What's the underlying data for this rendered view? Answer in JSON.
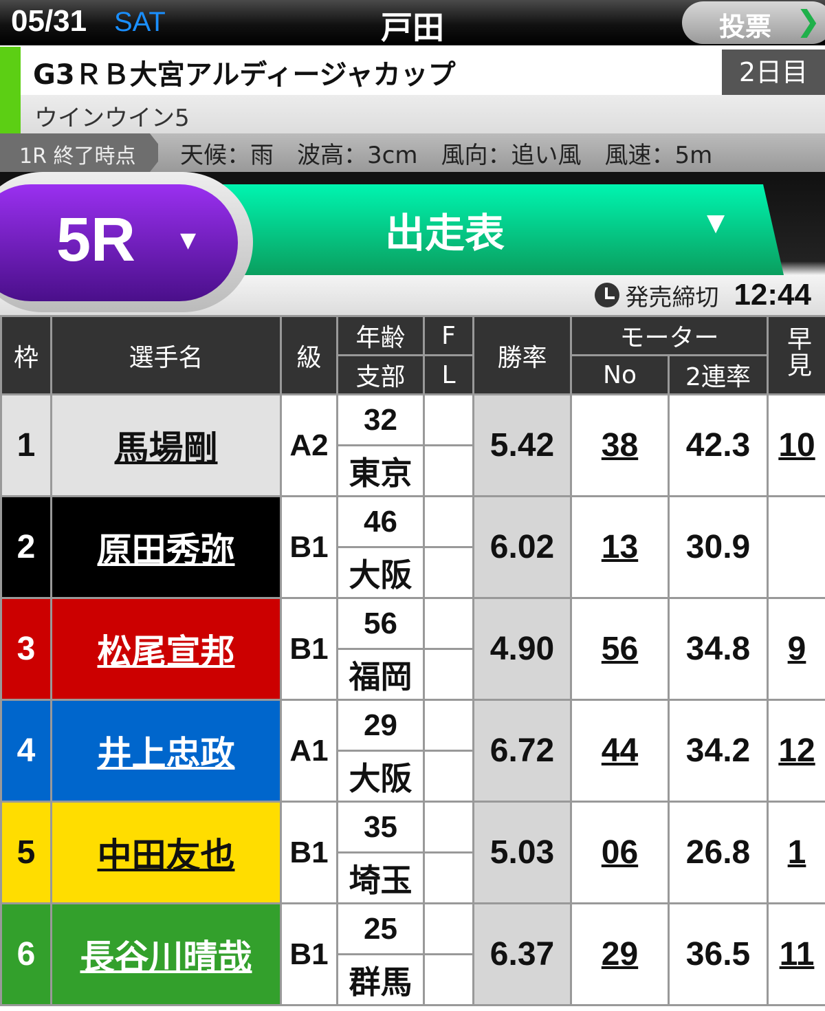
{
  "header": {
    "date": "05/31",
    "day_of_week": "SAT",
    "venue": "戸田",
    "vote_label": "投票",
    "vote_icon": "chevron-right-icon"
  },
  "race": {
    "title": "G3ＲＢ大宮アルディージャカップ",
    "day": "2日目",
    "subtitle": "ウインウイン5"
  },
  "conditions": {
    "as_of": "1R 終了時点",
    "text": "天候：雨　波高：3cm　風向：追い風　風速：5m"
  },
  "selector": {
    "race": "5R",
    "view": "出走表",
    "deadline_label": "発売締切",
    "deadline_time": "12:44"
  },
  "table": {
    "headers": {
      "waku": "枠",
      "name": "選手名",
      "class": "級",
      "age": "年齢",
      "branch": "支部",
      "f": "F",
      "l": "L",
      "win_rate": "勝率",
      "motor": "モーター",
      "motor_no": "No",
      "motor_2ren": "2連率",
      "tenji": "早見"
    },
    "rows": [
      {
        "waku": "1",
        "name": "馬場剛",
        "class": "A2",
        "age": "32",
        "branch": "東京",
        "f": "",
        "l": "",
        "win_rate": "5.42",
        "motor_no": "38",
        "motor_2ren": "42.3",
        "tenji": "10",
        "bg": "#e2e2e2",
        "fg": "#111"
      },
      {
        "waku": "2",
        "name": "原田秀弥",
        "class": "B1",
        "age": "46",
        "branch": "大阪",
        "f": "",
        "l": "",
        "win_rate": "6.02",
        "motor_no": "13",
        "motor_2ren": "30.9",
        "tenji": "",
        "bg": "#000000",
        "fg": "#ffffff"
      },
      {
        "waku": "3",
        "name": "松尾宣邦",
        "class": "B1",
        "age": "56",
        "branch": "福岡",
        "f": "",
        "l": "",
        "win_rate": "4.90",
        "motor_no": "56",
        "motor_2ren": "34.8",
        "tenji": "9",
        "bg": "#cc0000",
        "fg": "#ffffff"
      },
      {
        "waku": "4",
        "name": "井上忠政",
        "class": "A1",
        "age": "29",
        "branch": "大阪",
        "f": "",
        "l": "",
        "win_rate": "6.72",
        "motor_no": "44",
        "motor_2ren": "34.2",
        "tenji": "12",
        "bg": "#0066cc",
        "fg": "#ffffff"
      },
      {
        "waku": "5",
        "name": "中田友也",
        "class": "B1",
        "age": "35",
        "branch": "埼玉",
        "f": "",
        "l": "",
        "win_rate": "5.03",
        "motor_no": "06",
        "motor_2ren": "26.8",
        "tenji": "1",
        "bg": "#ffdd00",
        "fg": "#111111"
      },
      {
        "waku": "6",
        "name": "長谷川晴哉",
        "class": "B1",
        "age": "25",
        "branch": "群馬",
        "f": "",
        "l": "",
        "win_rate": "6.37",
        "motor_no": "29",
        "motor_2ren": "36.5",
        "tenji": "11",
        "bg": "#33a02c",
        "fg": "#ffffff"
      }
    ]
  }
}
